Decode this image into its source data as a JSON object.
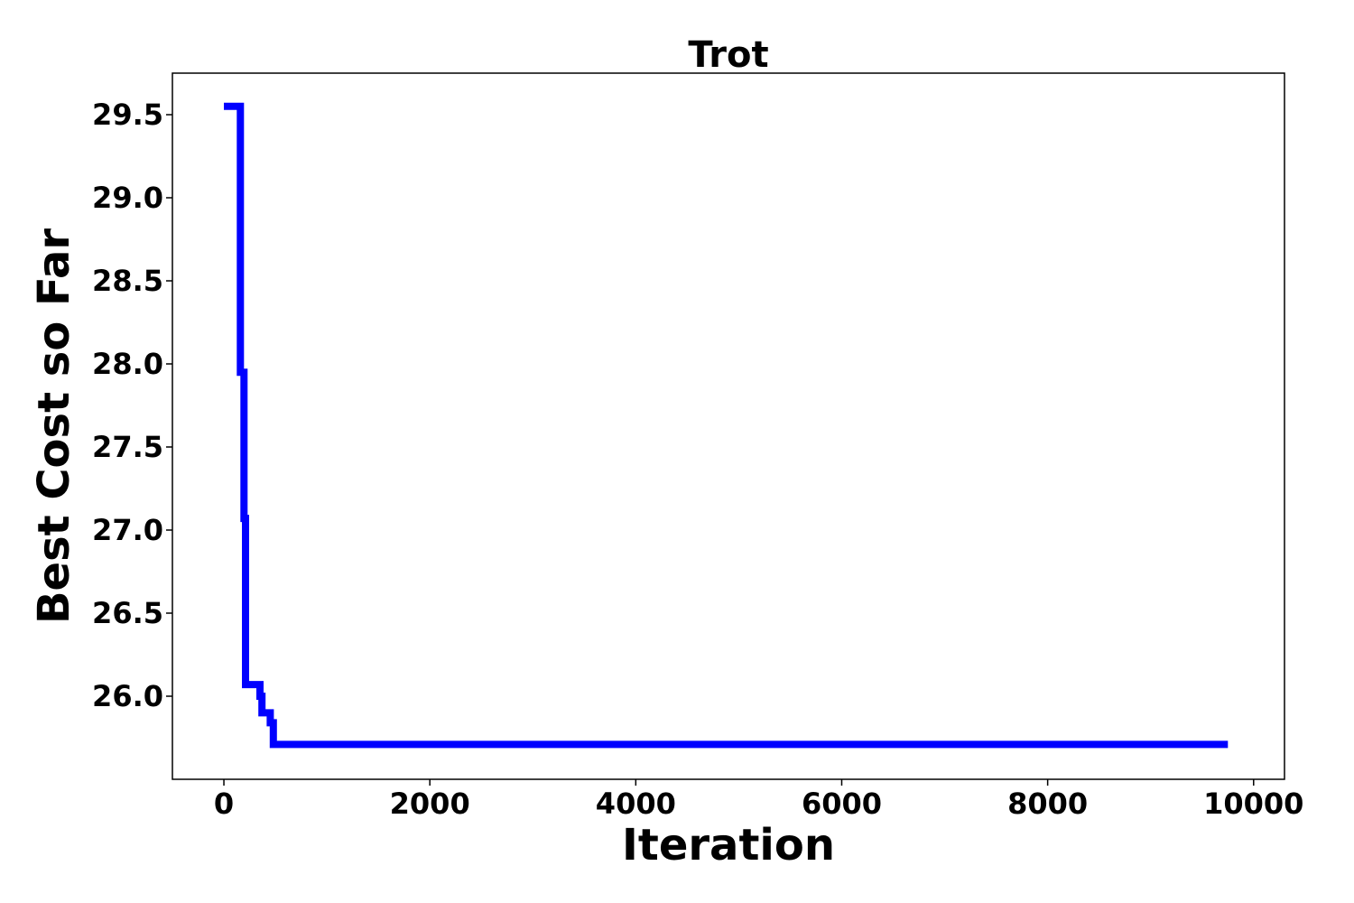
{
  "chart_data": {
    "type": "line",
    "title": "Trot",
    "xlabel": "Iteration",
    "ylabel": "Best Cost so Far",
    "xlim": [
      -500,
      10300
    ],
    "ylim": [
      25.5,
      29.75
    ],
    "xticks": [
      0,
      2000,
      4000,
      6000,
      8000,
      10000
    ],
    "yticks": [
      26.0,
      26.5,
      27.0,
      27.5,
      28.0,
      28.5,
      29.0,
      29.5
    ],
    "ytick_labels": [
      "26.0",
      "26.5",
      "27.0",
      "27.5",
      "28.0",
      "28.5",
      "29.0",
      "29.5"
    ],
    "grid": false,
    "legend": false,
    "step": true,
    "series": [
      {
        "color": "#0000ff",
        "x": [
          0,
          160,
          160,
          195,
          195,
          210,
          210,
          350,
          350,
          370,
          370,
          450,
          450,
          480,
          480,
          9750
        ],
        "y": [
          29.55,
          29.55,
          27.95,
          27.95,
          27.07,
          27.07,
          26.07,
          26.07,
          26.0,
          26.0,
          25.9,
          25.9,
          25.84,
          25.84,
          25.71,
          25.71
        ]
      }
    ]
  }
}
